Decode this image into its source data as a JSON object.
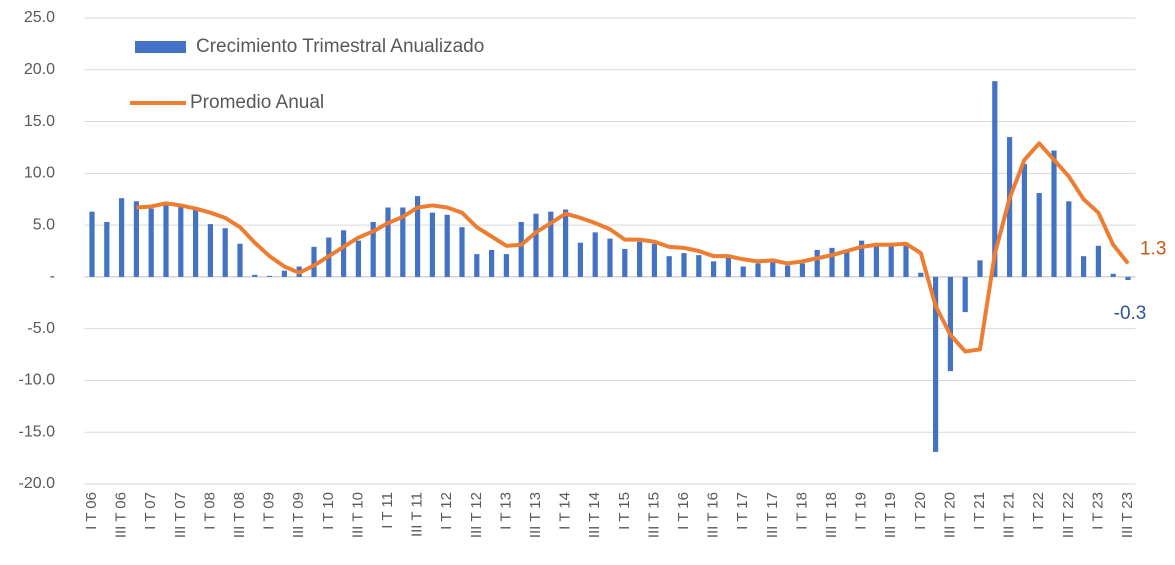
{
  "chart_data": {
    "type": "bar_line",
    "categories": [
      "I T 06",
      null,
      "III T 06",
      null,
      "I T 07",
      null,
      "III T 07",
      null,
      "I T 08",
      null,
      "III T 08",
      null,
      "I T 09",
      null,
      "III T 09",
      null,
      "I T 10",
      null,
      "III T 10",
      null,
      "I T 11",
      null,
      "III T 11",
      null,
      "I T 12",
      null,
      "III T 12",
      null,
      "I T 13",
      null,
      "III T 13",
      null,
      "I T 14",
      null,
      "III T 14",
      null,
      "I T 15",
      null,
      "III T 15",
      null,
      "I T 16",
      null,
      "III T 16",
      null,
      "I T 17",
      null,
      "III T 17",
      null,
      "I T 18",
      null,
      "III T 18",
      null,
      "I T 19",
      null,
      "III T 19",
      null,
      "I T 20",
      null,
      "III T 20",
      null,
      "I T 21",
      null,
      "III T 21",
      null,
      "I T 22",
      null,
      "III T 22",
      null,
      "I T 23",
      null,
      "III T 23"
    ],
    "series": [
      {
        "name": "Crecimiento Trimestral Anualizado",
        "type": "bar",
        "color": "#4472c4",
        "label_color": "#2f5597",
        "label_last": true,
        "values": [
          6.3,
          5.3,
          7.6,
          7.3,
          6.6,
          7.0,
          6.9,
          6.5,
          5.1,
          4.7,
          3.2,
          0.2,
          0.1,
          0.6,
          1.0,
          2.9,
          3.8,
          4.5,
          3.5,
          5.3,
          6.7,
          6.7,
          7.8,
          6.2,
          6.0,
          4.8,
          2.2,
          2.6,
          2.2,
          5.3,
          6.1,
          6.3,
          6.5,
          3.3,
          4.3,
          3.7,
          2.7,
          3.4,
          3.2,
          2.0,
          2.3,
          2.1,
          1.5,
          1.9,
          1.0,
          1.3,
          1.4,
          1.1,
          1.3,
          2.6,
          2.8,
          2.6,
          3.5,
          3.0,
          3.0,
          3.1,
          0.4,
          -16.9,
          -9.1,
          -3.4,
          1.6,
          18.9,
          13.5,
          10.9,
          8.1,
          12.2,
          7.3,
          2.0,
          3.0,
          0.3,
          -0.3
        ]
      },
      {
        "name": "Promedio Anual",
        "type": "line",
        "color": "#ed7d31",
        "label_color": "#c55a11",
        "label_last": true,
        "values": [
          null,
          null,
          null,
          6.7,
          6.8,
          7.1,
          6.9,
          6.6,
          6.2,
          5.7,
          4.8,
          3.3,
          2.0,
          1.0,
          0.4,
          1.1,
          2.0,
          2.9,
          3.8,
          4.4,
          5.2,
          5.8,
          6.7,
          6.9,
          6.7,
          6.2,
          4.8,
          3.9,
          3.0,
          3.1,
          4.3,
          5.2,
          6.1,
          5.7,
          5.2,
          4.6,
          3.6,
          3.6,
          3.4,
          2.9,
          2.8,
          2.5,
          2.0,
          2.0,
          1.7,
          1.5,
          1.6,
          1.3,
          1.5,
          1.8,
          2.1,
          2.5,
          2.9,
          3.1,
          3.1,
          3.2,
          2.3,
          -2.8,
          -5.6,
          -7.2,
          -7.0,
          2.2,
          7.6,
          11.3,
          12.9,
          11.3,
          9.7,
          7.5,
          6.2,
          3.1,
          1.3
        ]
      }
    ],
    "ylim": [
      -20,
      25
    ],
    "yticks": [
      {
        "value": -20,
        "label": "-20.0"
      },
      {
        "value": -15,
        "label": "-15.0"
      },
      {
        "value": -10,
        "label": "-10.0"
      },
      {
        "value": -5,
        "label": "-5.0"
      },
      {
        "value": 0,
        "label": "-"
      },
      {
        "value": 5,
        "label": "5.0"
      },
      {
        "value": 10,
        "label": "10.0"
      },
      {
        "value": 15,
        "label": "15.0"
      },
      {
        "value": 20,
        "label": "20.0"
      },
      {
        "value": 25,
        "label": "25.0"
      }
    ],
    "grid": true,
    "legend": "upper left"
  }
}
